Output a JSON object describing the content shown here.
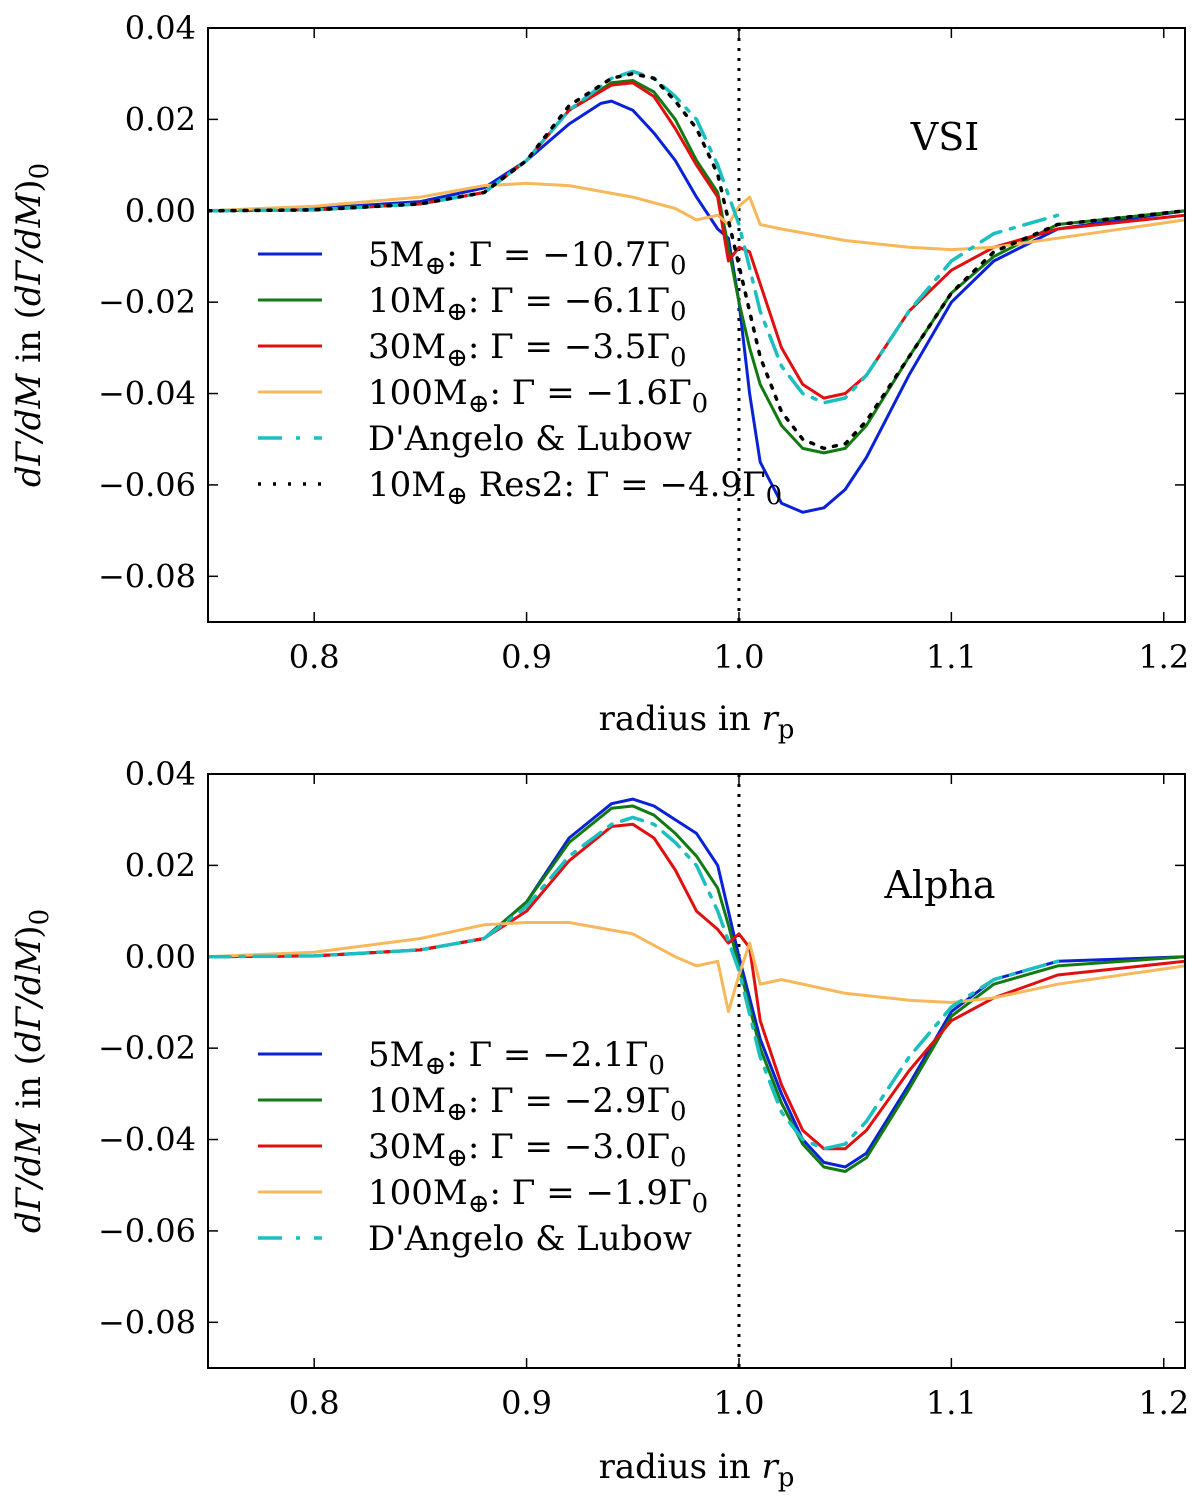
{
  "chart_data": [
    {
      "type": "line",
      "panel_label": "VSI",
      "xlabel": "radius in r_p",
      "ylabel": "dΓ/dM in (dΓ/dM)_0",
      "xlim": [
        0.75,
        1.21
      ],
      "ylim": [
        -0.09,
        0.04
      ],
      "xticks": [
        "0.8",
        "0.9",
        "1.0",
        "1.1",
        "1.2"
      ],
      "yticks": [
        "0.04",
        "0.02",
        "0.00",
        "−0.02",
        "−0.04",
        "−0.06",
        "−0.08"
      ],
      "legend_position": "lower-left",
      "vline": 1.0,
      "series": [
        {
          "name": "5M⊕: Γ = −10.7Γ0",
          "color": "#0a22d6",
          "style": "solid",
          "x": [
            0.75,
            0.8,
            0.85,
            0.88,
            0.9,
            0.92,
            0.935,
            0.94,
            0.95,
            0.96,
            0.97,
            0.98,
            0.99,
            0.995,
            1.0,
            1.005,
            1.01,
            1.02,
            1.03,
            1.04,
            1.05,
            1.06,
            1.08,
            1.1,
            1.12,
            1.15,
            1.21
          ],
          "y": [
            0.0,
            0.0005,
            0.002,
            0.005,
            0.011,
            0.019,
            0.0235,
            0.024,
            0.022,
            0.017,
            0.011,
            0.003,
            -0.004,
            -0.006,
            -0.02,
            -0.04,
            -0.055,
            -0.064,
            -0.066,
            -0.065,
            -0.061,
            -0.054,
            -0.036,
            -0.02,
            -0.011,
            -0.004,
            0.0
          ]
        },
        {
          "name": "10M⊕: Γ = −6.1Γ0",
          "color": "#127a12",
          "style": "solid",
          "x": [
            0.75,
            0.8,
            0.85,
            0.88,
            0.9,
            0.92,
            0.94,
            0.95,
            0.96,
            0.97,
            0.98,
            0.99,
            0.995,
            1.0,
            1.005,
            1.01,
            1.02,
            1.03,
            1.04,
            1.05,
            1.06,
            1.08,
            1.1,
            1.12,
            1.15,
            1.21
          ],
          "y": [
            0.0,
            0.0002,
            0.0015,
            0.004,
            0.011,
            0.022,
            0.028,
            0.0285,
            0.026,
            0.02,
            0.011,
            0.004,
            -0.008,
            -0.02,
            -0.03,
            -0.038,
            -0.047,
            -0.052,
            -0.053,
            -0.052,
            -0.047,
            -0.032,
            -0.018,
            -0.01,
            -0.003,
            0.0
          ]
        },
        {
          "name": "30M⊕: Γ = −3.5Γ0",
          "color": "#e01010",
          "style": "solid",
          "x": [
            0.75,
            0.8,
            0.85,
            0.88,
            0.9,
            0.92,
            0.94,
            0.95,
            0.96,
            0.97,
            0.98,
            0.99,
            0.995,
            1.0,
            1.005,
            1.01,
            1.02,
            1.03,
            1.04,
            1.05,
            1.06,
            1.08,
            1.1,
            1.12,
            1.15,
            1.21
          ],
          "y": [
            0.0,
            0.0002,
            0.0015,
            0.004,
            0.011,
            0.022,
            0.0275,
            0.028,
            0.025,
            0.018,
            0.01,
            0.003,
            -0.011,
            -0.008,
            -0.009,
            -0.016,
            -0.03,
            -0.038,
            -0.041,
            -0.04,
            -0.036,
            -0.022,
            -0.013,
            -0.008,
            -0.004,
            -0.001
          ]
        },
        {
          "name": "100M⊕: Γ = −1.6Γ0",
          "color": "#f6b85a",
          "style": "solid",
          "x": [
            0.75,
            0.8,
            0.85,
            0.88,
            0.9,
            0.92,
            0.95,
            0.97,
            0.98,
            0.99,
            0.995,
            1.0,
            1.005,
            1.01,
            1.02,
            1.05,
            1.08,
            1.1,
            1.12,
            1.15,
            1.21
          ],
          "y": [
            0.0,
            0.001,
            0.003,
            0.0055,
            0.006,
            0.0055,
            0.003,
            0.0005,
            -0.002,
            -0.001,
            -0.003,
            0.001,
            0.003,
            -0.003,
            -0.004,
            -0.0065,
            -0.008,
            -0.0085,
            -0.008,
            -0.006,
            -0.002
          ]
        },
        {
          "name": "D'Angelo & Lubow",
          "color": "#1cbec0",
          "style": "dashdot",
          "x": [
            0.75,
            0.8,
            0.85,
            0.88,
            0.9,
            0.92,
            0.94,
            0.95,
            0.96,
            0.97,
            0.98,
            0.99,
            1.0,
            1.01,
            1.02,
            1.03,
            1.04,
            1.05,
            1.06,
            1.08,
            1.1,
            1.12,
            1.15
          ],
          "y": [
            0.0,
            0.0002,
            0.0015,
            0.004,
            0.011,
            0.022,
            0.029,
            0.0305,
            0.029,
            0.025,
            0.02,
            0.01,
            -0.003,
            -0.022,
            -0.034,
            -0.04,
            -0.042,
            -0.041,
            -0.036,
            -0.022,
            -0.011,
            -0.005,
            -0.001
          ]
        },
        {
          "name": "10M⊕ Res2: Γ = −4.9Γ0",
          "color": "#000000",
          "style": "dotted",
          "x": [
            0.75,
            0.8,
            0.85,
            0.88,
            0.9,
            0.92,
            0.94,
            0.95,
            0.96,
            0.97,
            0.98,
            0.99,
            1.0,
            1.01,
            1.02,
            1.03,
            1.04,
            1.05,
            1.06,
            1.08,
            1.1,
            1.12,
            1.15,
            1.21
          ],
          "y": [
            0.0,
            0.0002,
            0.0015,
            0.004,
            0.011,
            0.023,
            0.029,
            0.03,
            0.029,
            0.024,
            0.018,
            0.008,
            -0.012,
            -0.032,
            -0.044,
            -0.05,
            -0.052,
            -0.051,
            -0.046,
            -0.032,
            -0.018,
            -0.009,
            -0.003,
            0.0
          ]
        }
      ]
    },
    {
      "type": "line",
      "panel_label": "Alpha",
      "xlabel": "radius in r_p",
      "ylabel": "dΓ/dM in (dΓ/dM)_0",
      "xlim": [
        0.75,
        1.21
      ],
      "ylim": [
        -0.09,
        0.04
      ],
      "xticks": [
        "0.8",
        "0.9",
        "1.0",
        "1.1",
        "1.2"
      ],
      "yticks": [
        "0.04",
        "0.02",
        "0.00",
        "−0.02",
        "−0.04",
        "−0.06",
        "−0.08"
      ],
      "legend_position": "lower-left",
      "vline": 1.0,
      "series": [
        {
          "name": "5M⊕: Γ = −2.1Γ0",
          "color": "#0a22d6",
          "style": "solid",
          "x": [
            0.75,
            0.8,
            0.85,
            0.88,
            0.9,
            0.92,
            0.94,
            0.95,
            0.96,
            0.97,
            0.98,
            0.99,
            0.995,
            1.0,
            1.01,
            1.02,
            1.03,
            1.04,
            1.05,
            1.06,
            1.08,
            1.1,
            1.12,
            1.15,
            1.21
          ],
          "y": [
            0.0,
            0.0002,
            0.0015,
            0.004,
            0.012,
            0.026,
            0.0335,
            0.0345,
            0.033,
            0.03,
            0.027,
            0.02,
            0.01,
            0.0,
            -0.018,
            -0.03,
            -0.04,
            -0.045,
            -0.046,
            -0.043,
            -0.028,
            -0.012,
            -0.005,
            -0.001,
            0.0
          ]
        },
        {
          "name": "10M⊕: Γ = −2.9Γ0",
          "color": "#127a12",
          "style": "solid",
          "x": [
            0.75,
            0.8,
            0.85,
            0.88,
            0.9,
            0.92,
            0.94,
            0.95,
            0.96,
            0.97,
            0.98,
            0.99,
            0.995,
            1.0,
            1.01,
            1.02,
            1.03,
            1.04,
            1.05,
            1.06,
            1.08,
            1.1,
            1.12,
            1.15,
            1.21
          ],
          "y": [
            0.0,
            0.0002,
            0.0015,
            0.004,
            0.012,
            0.025,
            0.0325,
            0.033,
            0.031,
            0.027,
            0.022,
            0.015,
            0.007,
            -0.002,
            -0.02,
            -0.032,
            -0.041,
            -0.046,
            -0.047,
            -0.044,
            -0.029,
            -0.013,
            -0.006,
            -0.002,
            0.0
          ]
        },
        {
          "name": "30M⊕: Γ = −3.0Γ0",
          "color": "#e01010",
          "style": "solid",
          "x": [
            0.75,
            0.8,
            0.85,
            0.88,
            0.9,
            0.92,
            0.94,
            0.95,
            0.96,
            0.97,
            0.98,
            0.99,
            0.995,
            1.0,
            1.005,
            1.01,
            1.02,
            1.03,
            1.04,
            1.05,
            1.06,
            1.08,
            1.1,
            1.12,
            1.15,
            1.21
          ],
          "y": [
            0.0,
            0.0002,
            0.0015,
            0.004,
            0.01,
            0.021,
            0.0285,
            0.029,
            0.026,
            0.019,
            0.01,
            0.006,
            0.003,
            0.005,
            0.002,
            -0.014,
            -0.028,
            -0.038,
            -0.042,
            -0.042,
            -0.038,
            -0.025,
            -0.014,
            -0.009,
            -0.004,
            -0.001
          ]
        },
        {
          "name": "100M⊕: Γ = −1.9Γ0",
          "color": "#f6b85a",
          "style": "solid",
          "x": [
            0.75,
            0.8,
            0.85,
            0.88,
            0.9,
            0.92,
            0.95,
            0.97,
            0.98,
            0.99,
            0.995,
            1.0,
            1.005,
            1.01,
            1.02,
            1.05,
            1.08,
            1.1,
            1.12,
            1.15,
            1.21
          ],
          "y": [
            0.0,
            0.001,
            0.004,
            0.007,
            0.0075,
            0.0075,
            0.005,
            0.0,
            -0.002,
            -0.001,
            -0.012,
            -0.004,
            0.003,
            -0.006,
            -0.005,
            -0.008,
            -0.0095,
            -0.01,
            -0.009,
            -0.006,
            -0.002
          ]
        },
        {
          "name": "D'Angelo & Lubow",
          "color": "#1cbec0",
          "style": "dashdot",
          "x": [
            0.75,
            0.8,
            0.85,
            0.88,
            0.9,
            0.92,
            0.94,
            0.95,
            0.96,
            0.97,
            0.98,
            0.99,
            1.0,
            1.01,
            1.02,
            1.03,
            1.04,
            1.05,
            1.06,
            1.08,
            1.1,
            1.12,
            1.15
          ],
          "y": [
            0.0,
            0.0002,
            0.0015,
            0.004,
            0.011,
            0.022,
            0.029,
            0.0305,
            0.029,
            0.025,
            0.02,
            0.01,
            -0.003,
            -0.022,
            -0.034,
            -0.04,
            -0.042,
            -0.041,
            -0.036,
            -0.022,
            -0.011,
            -0.005,
            -0.001
          ]
        }
      ]
    }
  ]
}
